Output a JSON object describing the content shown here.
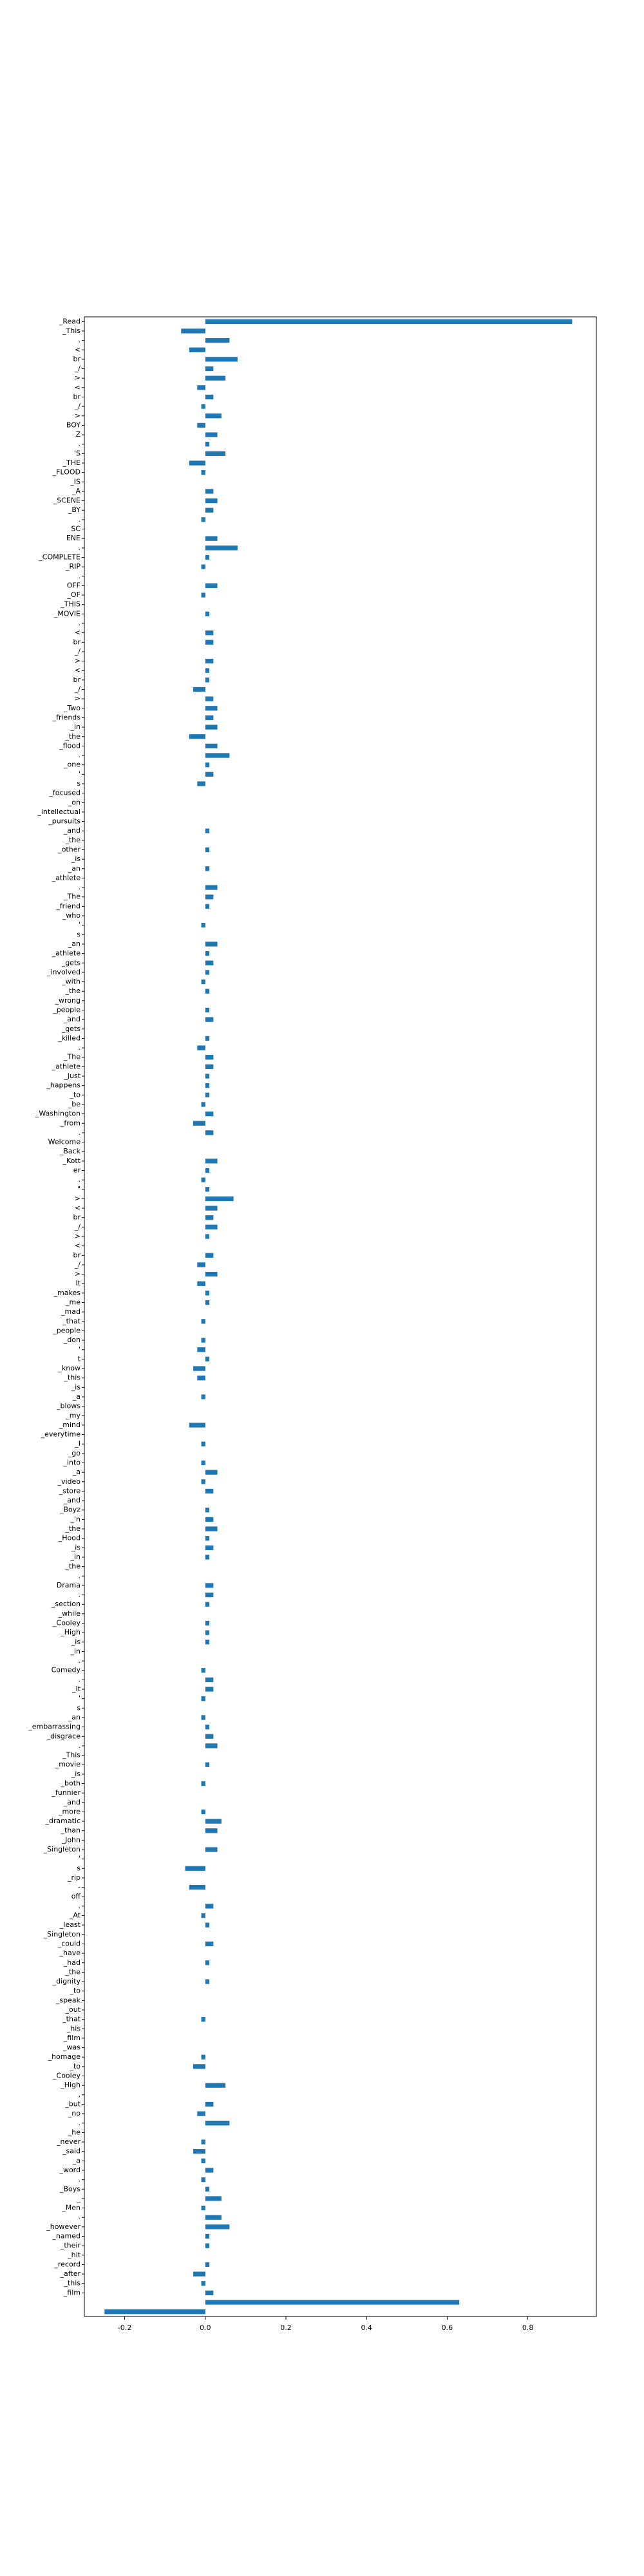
{
  "chart_data": {
    "type": "barh",
    "color": "#1f77b4",
    "categories": [
      "_Read",
      "_This",
      ".",
      "<",
      "br",
      "_/",
      ">",
      "<",
      "br",
      "_/",
      ">",
      "BOY",
      "Z",
      ".",
      "'S",
      "_THE",
      "_FLOOD",
      "_IS",
      "_A",
      "_SCENE",
      "_BY",
      ".",
      "SC",
      "ENE",
      ".",
      "_COMPLETE",
      "_RIP",
      ".",
      "OFF",
      "_OF",
      "_THIS",
      "_MOVIE",
      ".",
      "<",
      "br",
      "_/",
      ">",
      "<",
      "br",
      "_/",
      ">",
      "_Two",
      "_friends",
      "_in",
      "_the",
      "_flood",
      ".",
      "_one",
      "'",
      "s",
      "_focused",
      "_on",
      "_intellectual",
      "_pursuits",
      "_and",
      "_the",
      "_other",
      "_is",
      "_an",
      "_athlete",
      ".",
      "_The",
      "_friend",
      "_who",
      "'",
      "s",
      "_an",
      "_athlete",
      "_gets",
      "_involved",
      "_with",
      "_the",
      "_wrong",
      "_people",
      "_and",
      "_gets",
      "_killed",
      ".",
      "_The",
      "_athlete",
      "_just",
      "_happens",
      "_to",
      "_be",
      "_Washington",
      "_from",
      ".",
      "Welcome",
      "_Back",
      "_Kott",
      "er",
      ".",
      "\"",
      ">",
      "<",
      "br",
      "_/",
      ">",
      "<",
      "br",
      "_/",
      ">",
      "It",
      "_makes",
      "_me",
      "_mad",
      "_that",
      "_people",
      "_don",
      "'",
      "t",
      "_know",
      "_this",
      "_is",
      "_a",
      "_blows",
      "_my",
      "_mind",
      "_everytime",
      "_I",
      "_go",
      "_into",
      "_a",
      "_video",
      "_store",
      "_and",
      "_Boyz",
      "_'n",
      "_the",
      "_Hood",
      "_is",
      "_in",
      "_the",
      ".",
      "Drama",
      ".",
      "_section",
      "_while",
      "_Cooley",
      "_High",
      "_is",
      "_in",
      ".",
      "Comedy",
      ".",
      "_It",
      "'",
      "s",
      "_an",
      "_embarrassing",
      "_disgrace",
      ".",
      "_This",
      "_movie",
      "_is",
      "_both",
      "_funnier",
      "_and",
      "_more",
      "_dramatic",
      "_than",
      "_John",
      "_Singleton",
      "'",
      "s",
      "_rip",
      "-",
      "off",
      ".",
      "_At",
      "_least",
      "_Singleton",
      "_could",
      "_have",
      "_had",
      "_the",
      "_dignity",
      "_to",
      "_speak",
      "_out",
      "_that",
      "_his",
      "_film",
      "_was",
      "_homage",
      "_to",
      "_Cooley",
      "_High",
      ",",
      "_but",
      "_no",
      ".",
      "_he",
      "_never",
      "_said",
      "_a",
      "_word",
      ".",
      "_Boys",
      "_",
      "_Men",
      ".",
      "_however",
      "_named",
      "_their",
      "_hit",
      "_record",
      "_after",
      "_this",
      "_film",
      null,
      null
    ],
    "values": [
      0.91,
      -0.06,
      0.06,
      -0.04,
      0.08,
      0.02,
      0.05,
      -0.02,
      0.02,
      -0.01,
      0.04,
      -0.02,
      0.03,
      0.01,
      0.05,
      -0.04,
      -0.01,
      0.0,
      0.02,
      0.03,
      0.02,
      -0.01,
      0.0,
      0.03,
      0.08,
      0.01,
      -0.01,
      0.0,
      0.03,
      -0.01,
      0.0,
      0.01,
      0.0,
      0.02,
      0.02,
      0.0,
      0.02,
      0.01,
      0.01,
      -0.03,
      0.02,
      0.03,
      0.02,
      0.03,
      -0.04,
      0.03,
      0.06,
      0.01,
      0.02,
      -0.02,
      0.0,
      0.0,
      0.0,
      0.0,
      0.01,
      0.0,
      0.01,
      0.0,
      0.01,
      0.0,
      0.03,
      0.02,
      0.01,
      0.0,
      -0.01,
      0.0,
      0.03,
      0.01,
      0.02,
      0.01,
      -0.01,
      0.01,
      0.0,
      0.01,
      0.02,
      0.0,
      0.01,
      -0.02,
      0.02,
      0.02,
      0.01,
      0.01,
      0.01,
      -0.01,
      0.02,
      -0.03,
      0.02,
      0.0,
      0.0,
      0.03,
      0.01,
      -0.01,
      0.01,
      0.07,
      0.03,
      0.02,
      0.03,
      0.01,
      0.0,
      0.02,
      -0.02,
      0.03,
      -0.02,
      0.01,
      0.01,
      0.0,
      -0.01,
      0.0,
      -0.01,
      -0.02,
      0.01,
      -0.03,
      -0.02,
      0.0,
      -0.01,
      0.0,
      0.0,
      -0.04,
      0.0,
      -0.01,
      0.0,
      -0.01,
      0.03,
      -0.01,
      0.02,
      0.0,
      0.01,
      0.02,
      0.03,
      0.01,
      0.02,
      0.01,
      0.0,
      0.0,
      0.02,
      0.02,
      0.01,
      0.0,
      0.01,
      0.01,
      0.01,
      0.0,
      0.0,
      -0.01,
      0.02,
      0.02,
      -0.01,
      0.0,
      -0.01,
      0.01,
      0.02,
      0.03,
      0.0,
      0.01,
      0.0,
      -0.01,
      0.0,
      0.0,
      -0.01,
      0.04,
      0.03,
      0.0,
      0.03,
      0.0,
      -0.05,
      0.0,
      -0.04,
      0.0,
      0.02,
      -0.01,
      0.01,
      0.0,
      0.02,
      0.0,
      0.01,
      0.0,
      0.01,
      0.0,
      0.0,
      0.0,
      -0.01,
      0.0,
      0.0,
      0.0,
      -0.01,
      -0.03,
      0.0,
      0.05,
      0.0,
      0.02,
      -0.02,
      0.06,
      0.0,
      -0.01,
      -0.03,
      -0.01,
      0.02,
      -0.01,
      0.01,
      0.04,
      -0.01,
      0.04,
      0.06,
      0.01,
      0.01,
      0.0,
      0.01,
      -0.03,
      -0.01,
      0.02,
      0.63,
      -0.25
    ],
    "xlim": [
      -0.3,
      0.97
    ],
    "xticks": [
      -0.2,
      {
        "value": 0,
        "label": "0.0"
      },
      0.2,
      0.4,
      0.6,
      0.8
    ]
  }
}
